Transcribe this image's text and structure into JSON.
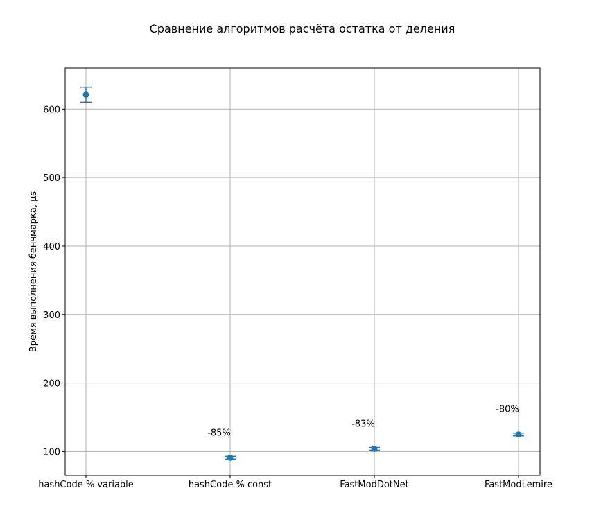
{
  "chart_data": {
    "type": "scatter",
    "title": "Сравнение алгоритмов расчёта остатка от деления",
    "xlabel": "",
    "ylabel": "Время выполнения бенчмарка, μs",
    "categories": [
      "hashCode % variable",
      "hashCode % const",
      "FastModDotNet",
      "FastModLemire"
    ],
    "values": [
      621,
      91,
      104,
      125
    ],
    "error": [
      11,
      2,
      2,
      2
    ],
    "annotations": [
      "",
      "-85%",
      "-83%",
      "-80%"
    ],
    "ylim": [
      65,
      660
    ],
    "yticks": [
      100,
      200,
      300,
      400,
      500,
      600
    ],
    "grid": true,
    "colors": {
      "marker": "#1f77b4",
      "grid": "#b0b0b0"
    }
  }
}
